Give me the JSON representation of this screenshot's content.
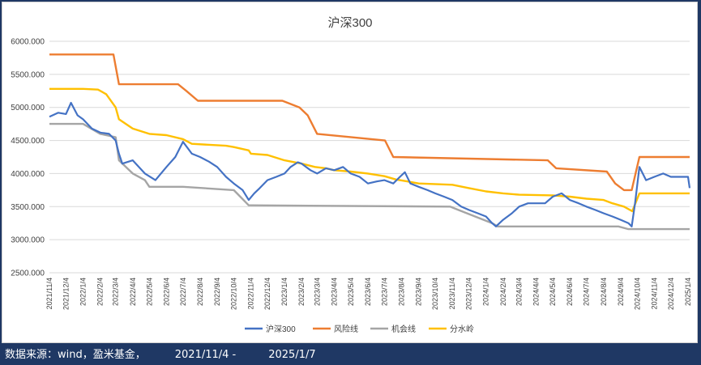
{
  "colors": {
    "hs300": "#4472c4",
    "risk": "#ed7d31",
    "opportunity": "#a5a5a5",
    "watershed": "#ffc000",
    "background": "#1f3864",
    "grid": "#d9d9d9"
  },
  "footer": {
    "source": "数据来源：wind，盈米基金，",
    "start_date": "2021/11/4 -",
    "end_date": "2025/1/7"
  },
  "chart_data": {
    "type": "line",
    "title": "沪深300",
    "xlabel": "",
    "ylabel": "",
    "ylim": [
      2500,
      6000
    ],
    "y_ticks": [
      "2500.000",
      "3000.000",
      "3500.000",
      "4000.000",
      "4500.000",
      "5000.000",
      "5500.000",
      "6000.000"
    ],
    "x_ticks": [
      "2021/11/4",
      "2021/12/4",
      "2022/1/4",
      "2022/2/4",
      "2022/3/4",
      "2022/4/4",
      "2022/5/4",
      "2022/6/4",
      "2022/7/4",
      "2022/8/4",
      "2022/9/4",
      "2022/10/4",
      "2022/11/4",
      "2022/12/4",
      "2023/1/4",
      "2023/2/4",
      "2023/3/4",
      "2023/4/4",
      "2023/5/4",
      "2023/6/4",
      "2023/7/4",
      "2023/8/4",
      "2023/9/4",
      "2023/10/4",
      "2023/11/4",
      "2023/12/4",
      "2024/1/4",
      "2024/2/4",
      "2024/3/4",
      "2024/4/4",
      "2024/5/4",
      "2024/6/4",
      "2024/7/4",
      "2024/8/4",
      "2024/9/4",
      "2024/10/4",
      "2024/11/4",
      "2024/12/4",
      "2025/1/4"
    ],
    "grid": true,
    "legend_position": "bottom",
    "series": [
      {
        "name": "沪深300",
        "color_key": "hs300",
        "x": [
          "2021/11/4",
          "2021/11/20",
          "2021/12/4",
          "2021/12/13",
          "2021/12/25",
          "2022/1/4",
          "2022/1/20",
          "2022/2/4",
          "2022/2/20",
          "2022/3/4",
          "2022/3/10",
          "2022/3/16",
          "2022/4/4",
          "2022/4/26",
          "2022/5/15",
          "2022/6/4",
          "2022/6/20",
          "2022/7/4",
          "2022/7/20",
          "2022/8/4",
          "2022/8/20",
          "2022/9/4",
          "2022/9/20",
          "2022/10/4",
          "2022/10/20",
          "2022/10/31",
          "2022/11/10",
          "2022/11/20",
          "2022/12/4",
          "2022/12/20",
          "2023/1/4",
          "2023/1/15",
          "2023/1/28",
          "2023/2/4",
          "2023/2/20",
          "2023/3/4",
          "2023/3/20",
          "2023/4/4",
          "2023/4/20",
          "2023/5/4",
          "2023/5/20",
          "2023/6/4",
          "2023/6/20",
          "2023/7/4",
          "2023/7/20",
          "2023/8/1",
          "2023/8/10",
          "2023/8/20",
          "2023/9/4",
          "2023/9/20",
          "2023/10/4",
          "2023/10/20",
          "2023/11/4",
          "2023/11/20",
          "2023/12/4",
          "2023/12/20",
          "2024/1/4",
          "2024/1/15",
          "2024/1/22",
          "2024/2/4",
          "2024/2/20",
          "2024/3/4",
          "2024/3/20",
          "2024/4/4",
          "2024/4/20",
          "2024/5/4",
          "2024/5/20",
          "2024/6/4",
          "2024/6/20",
          "2024/7/4",
          "2024/7/20",
          "2024/8/4",
          "2024/8/20",
          "2024/9/4",
          "2024/9/18",
          "2024/9/24",
          "2024/9/30",
          "2024/10/8",
          "2024/10/20",
          "2024/11/4",
          "2024/11/20",
          "2024/12/4",
          "2024/12/20",
          "2025/1/4",
          "2025/1/7"
        ],
        "values": [
          4860,
          4920,
          4900,
          5070,
          4880,
          4820,
          4680,
          4620,
          4600,
          4500,
          4300,
          4150,
          4200,
          4000,
          3900,
          4100,
          4250,
          4480,
          4300,
          4250,
          4180,
          4100,
          3950,
          3850,
          3750,
          3600,
          3700,
          3780,
          3900,
          3950,
          4000,
          4100,
          4170,
          4150,
          4050,
          4000,
          4080,
          4050,
          4100,
          4000,
          3950,
          3850,
          3880,
          3900,
          3850,
          3950,
          4020,
          3850,
          3800,
          3750,
          3700,
          3650,
          3600,
          3500,
          3450,
          3400,
          3350,
          3250,
          3200,
          3300,
          3400,
          3500,
          3550,
          3550,
          3550,
          3650,
          3700,
          3600,
          3550,
          3500,
          3450,
          3400,
          3350,
          3300,
          3250,
          3200,
          3550,
          4100,
          3900,
          3950,
          4000,
          3950,
          3950,
          3950,
          3780
        ]
      },
      {
        "name": "风险线",
        "color_key": "risk",
        "x": [
          "2021/11/4",
          "2022/2/28",
          "2022/3/10",
          "2022/6/25",
          "2022/7/10",
          "2022/7/31",
          "2022/12/31",
          "2023/1/31",
          "2023/2/15",
          "2023/3/4",
          "2023/7/5",
          "2023/7/20",
          "2024/4/25",
          "2024/5/10",
          "2024/8/10",
          "2024/8/25",
          "2024/9/10",
          "2024/9/24",
          "2024/10/8",
          "2025/1/7"
        ],
        "values": [
          5800,
          5800,
          5350,
          5350,
          5250,
          5100,
          5100,
          5000,
          4880,
          4600,
          4500,
          4250,
          4200,
          4080,
          4030,
          3850,
          3750,
          3750,
          4250,
          4250
        ]
      },
      {
        "name": "机会线",
        "color_key": "opportunity",
        "x": [
          "2021/11/4",
          "2021/12/4",
          "2022/1/4",
          "2022/2/4",
          "2022/3/4",
          "2022/3/10",
          "2022/4/4",
          "2022/4/26",
          "2022/5/4",
          "2022/7/4",
          "2022/10/4",
          "2022/10/31",
          "2022/11/4",
          "2023/10/31",
          "2023/11/15",
          "2024/1/15",
          "2024/1/25",
          "2024/8/31",
          "2024/9/18",
          "2025/1/7"
        ],
        "values": [
          4750,
          4750,
          4750,
          4600,
          4550,
          4200,
          4000,
          3900,
          3800,
          3800,
          3750,
          3520,
          3520,
          3500,
          3450,
          3250,
          3200,
          3200,
          3160,
          3160
        ]
      },
      {
        "name": "分水岭",
        "color_key": "watershed",
        "x": [
          "2021/11/4",
          "2022/1/4",
          "2022/1/31",
          "2022/2/15",
          "2022/3/4",
          "2022/3/10",
          "2022/4/4",
          "2022/5/4",
          "2022/6/4",
          "2022/7/4",
          "2022/7/20",
          "2022/9/20",
          "2022/10/4",
          "2022/10/31",
          "2022/11/4",
          "2022/12/4",
          "2023/1/4",
          "2023/2/4",
          "2023/2/28",
          "2023/3/20",
          "2023/4/4",
          "2023/5/4",
          "2023/6/4",
          "2023/7/4",
          "2023/7/25",
          "2023/8/15",
          "2023/9/4",
          "2023/11/4",
          "2023/12/4",
          "2024/1/4",
          "2024/2/4",
          "2024/3/4",
          "2024/5/4",
          "2024/6/4",
          "2024/7/4",
          "2024/8/4",
          "2024/8/20",
          "2024/9/10",
          "2024/9/25",
          "2024/10/8",
          "2025/1/7"
        ],
        "values": [
          5280,
          5280,
          5270,
          5200,
          5000,
          4820,
          4680,
          4600,
          4580,
          4520,
          4450,
          4420,
          4400,
          4350,
          4300,
          4280,
          4200,
          4150,
          4100,
          4080,
          4050,
          4030,
          4000,
          3960,
          3910,
          3880,
          3850,
          3830,
          3780,
          3730,
          3700,
          3680,
          3670,
          3650,
          3620,
          3600,
          3550,
          3500,
          3430,
          3700,
          3700
        ]
      }
    ]
  }
}
